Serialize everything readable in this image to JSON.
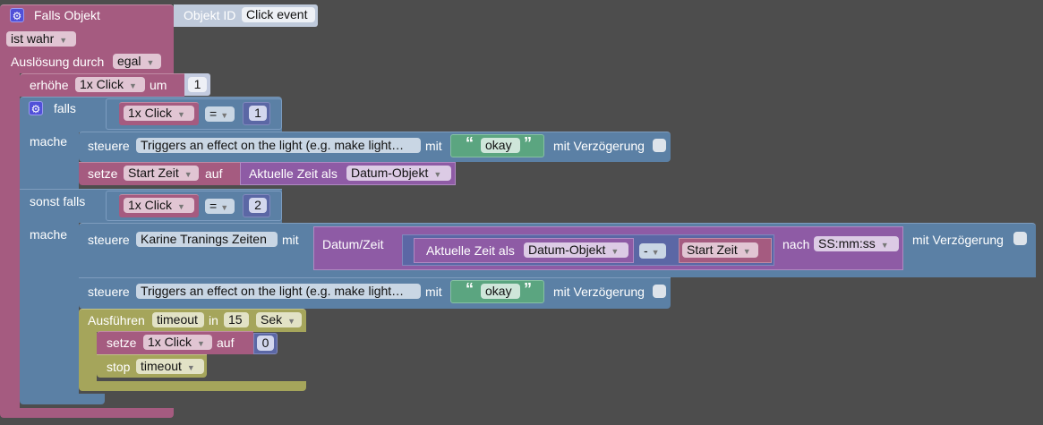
{
  "trigger": {
    "title": "Falls Objekt",
    "object_id_label": "Objekt ID",
    "object_id_value": "Click event",
    "condition": "ist wahr",
    "trigger_label": "Auslösung durch",
    "trigger_value": "egal"
  },
  "increment": {
    "label": "erhöhe",
    "variable": "1x Click",
    "by_label": "um",
    "amount": "1"
  },
  "if_block": {
    "if_label": "falls",
    "do_label": "mache",
    "elseif_label": "sonst falls",
    "cond1": {
      "variable": "1x Click",
      "operator": "=",
      "value": "1"
    },
    "cond2": {
      "variable": "1x Click",
      "operator": "=",
      "value": "2"
    }
  },
  "control1": {
    "label": "steuere",
    "target": "Triggers an effect on the light (e.g. make light…",
    "with_label": "mit",
    "value": "okay",
    "delay_label": "mit Verzögerung"
  },
  "set_start": {
    "label": "setze",
    "variable": "Start Zeit",
    "to_label": "auf",
    "time_label": "Aktuelle Zeit als",
    "time_format": "Datum-Objekt"
  },
  "control2": {
    "label": "steuere",
    "target": "Karine Tranings Zeiten",
    "with_label": "mit",
    "datetime_label": "Datum/Zeit",
    "time_label": "Aktuelle Zeit als",
    "time_format": "Datum-Objekt",
    "operator": "-",
    "variable": "Start Zeit",
    "after_label": "nach",
    "format": "SS:mm:ss",
    "delay_label": "mit Verzögerung"
  },
  "control3": {
    "label": "steuere",
    "target": "Triggers an effect on the light (e.g. make light…",
    "with_label": "mit",
    "value": "okay",
    "delay_label": "mit Verzögerung"
  },
  "timeout": {
    "label": "Ausführen",
    "name": "timeout",
    "in_label": "in",
    "value": "15",
    "unit": "Sek",
    "set_label": "setze",
    "set_variable": "1x Click",
    "set_to_label": "auf",
    "set_value": "0",
    "stop_label": "stop",
    "stop_name": "timeout"
  },
  "quotes": {
    "open": "“",
    "close": "”"
  },
  "colors": {
    "background": "#4d4d4d",
    "variables": "#a55b80",
    "logic": "#5b80a5",
    "datetime": "#8e5ba5",
    "text": "#5ba580",
    "timeouts": "#a5a55b",
    "math": "#5b67a5"
  }
}
